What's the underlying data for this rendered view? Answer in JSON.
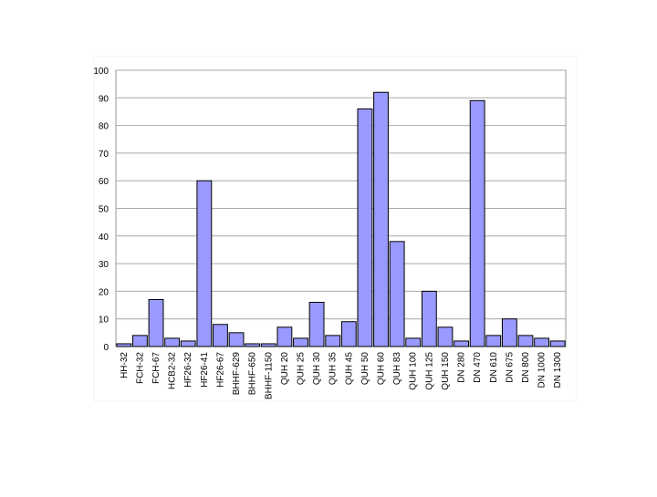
{
  "chart_data": {
    "type": "bar",
    "categories": [
      "HH-32",
      "FCH-32",
      "FCH-67",
      "HCB2-32",
      "HF26-32",
      "HF26-41",
      "HF26-67",
      "BHHF-629",
      "BHHF-650",
      "BHHF-1150",
      "QUH 20",
      "QUH 25",
      "QUH 30",
      "QUH 35",
      "QUH 45",
      "QUH 50",
      "QUH 60",
      "QUH 83",
      "QUH 100",
      "QUH 125",
      "QUH 150",
      "DN 280",
      "DN 470",
      "DN 610",
      "DN 675",
      "DN 800",
      "DN 1000",
      "DN 1300"
    ],
    "values": [
      1,
      4,
      17,
      3,
      2,
      60,
      8,
      5,
      1,
      1,
      7,
      3,
      16,
      4,
      9,
      86,
      92,
      38,
      3,
      20,
      7,
      2,
      89,
      4,
      10,
      4,
      3,
      2
    ],
    "color": "#9999ff",
    "ylim": [
      0,
      100
    ],
    "yticks": [
      0,
      10,
      20,
      30,
      40,
      50,
      60,
      70,
      80,
      90,
      100
    ],
    "grid": true
  }
}
